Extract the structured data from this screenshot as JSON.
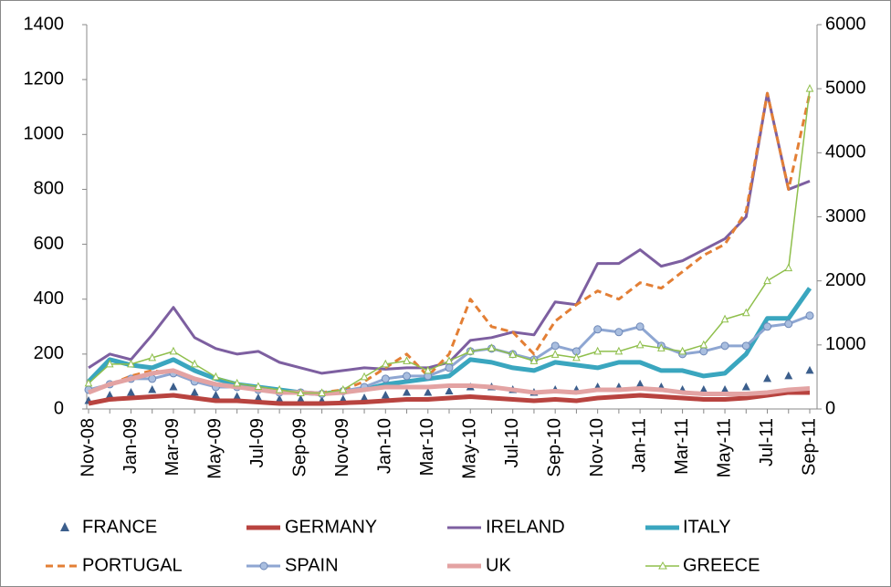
{
  "chart_data": {
    "type": "line",
    "categories": [
      "Nov-08",
      null,
      "Jan-09",
      null,
      "Mar-09",
      null,
      "May-09",
      null,
      "Jul-09",
      null,
      "Sep-09",
      null,
      "Nov-09",
      null,
      "Jan-10",
      null,
      "Mar-10",
      null,
      "May-10",
      null,
      "Jul-10",
      null,
      "Sep-10",
      null,
      "Nov-10",
      null,
      "Jan-11",
      null,
      "Mar-11",
      null,
      "May-11",
      null,
      "Jul-11",
      null,
      "Sep-11"
    ],
    "ylim": [
      0,
      1400
    ],
    "yticks": [
      0,
      200,
      400,
      600,
      800,
      1000,
      1200,
      1400
    ],
    "y2lim": [
      0,
      6000
    ],
    "y2ticks": [
      0,
      1000,
      2000,
      3000,
      4000,
      5000,
      6000
    ],
    "grid": false,
    "series": [
      {
        "name": "FRANCE",
        "color": "#3b5e8c",
        "marker": "triangle",
        "values": [
          30,
          50,
          60,
          70,
          80,
          60,
          50,
          45,
          40,
          35,
          35,
          30,
          35,
          40,
          50,
          60,
          60,
          65,
          80,
          80,
          70,
          60,
          70,
          70,
          80,
          80,
          90,
          80,
          70,
          70,
          70,
          80,
          110,
          120,
          140
        ]
      },
      {
        "name": "GERMANY",
        "color": "#b8433f",
        "width": 5,
        "values": [
          20,
          35,
          40,
          45,
          50,
          40,
          30,
          30,
          25,
          20,
          20,
          20,
          22,
          25,
          30,
          35,
          35,
          40,
          45,
          40,
          35,
          30,
          35,
          30,
          40,
          45,
          50,
          45,
          40,
          35,
          35,
          40,
          50,
          60,
          60
        ]
      },
      {
        "name": "IRELAND",
        "color": "#7d5fa0",
        "width": 3,
        "values": [
          150,
          200,
          180,
          270,
          370,
          260,
          220,
          200,
          210,
          170,
          150,
          130,
          140,
          150,
          145,
          150,
          150,
          170,
          250,
          260,
          280,
          270,
          390,
          380,
          530,
          530,
          580,
          520,
          540,
          580,
          620,
          700,
          1150,
          800,
          830
        ]
      },
      {
        "name": "ITALY",
        "color": "#3aa6bf",
        "width": 5,
        "values": [
          100,
          180,
          160,
          150,
          180,
          140,
          110,
          90,
          80,
          70,
          60,
          55,
          65,
          70,
          90,
          100,
          110,
          120,
          180,
          170,
          150,
          140,
          170,
          160,
          150,
          170,
          170,
          140,
          140,
          120,
          130,
          200,
          330,
          330,
          440
        ]
      },
      {
        "name": "PORTUGAL",
        "color": "#e37f35",
        "width": 3,
        "dashed": true,
        "values": [
          60,
          90,
          120,
          140,
          130,
          100,
          90,
          80,
          70,
          60,
          60,
          60,
          70,
          100,
          150,
          200,
          120,
          200,
          400,
          300,
          280,
          200,
          320,
          380,
          430,
          400,
          460,
          440,
          500,
          560,
          600,
          720,
          1150,
          800,
          1150
        ]
      },
      {
        "name": "SPAIN",
        "color": "#8ea6d2",
        "width": 3,
        "marker": "circle",
        "values": [
          70,
          90,
          110,
          110,
          130,
          100,
          80,
          80,
          70,
          60,
          60,
          55,
          65,
          80,
          110,
          120,
          120,
          150,
          210,
          220,
          200,
          180,
          230,
          210,
          290,
          280,
          300,
          230,
          200,
          210,
          230,
          230,
          300,
          310,
          340
        ]
      },
      {
        "name": "UK",
        "color": "#e3a3a3",
        "width": 5,
        "values": [
          60,
          90,
          110,
          130,
          140,
          110,
          90,
          80,
          70,
          60,
          60,
          55,
          60,
          70,
          80,
          80,
          80,
          85,
          85,
          80,
          70,
          60,
          65,
          60,
          70,
          70,
          75,
          70,
          60,
          55,
          55,
          55,
          60,
          70,
          75
        ]
      },
      {
        "name": "GREECE",
        "color": "#8fbf4c",
        "width": 1.5,
        "marker": "open-triangle",
        "axis": "y2",
        "values": [
          400,
          700,
          700,
          800,
          900,
          700,
          500,
          400,
          350,
          300,
          250,
          250,
          300,
          500,
          700,
          750,
          600,
          750,
          900,
          950,
          850,
          750,
          850,
          800,
          900,
          900,
          1000,
          950,
          900,
          1000,
          1400,
          1500,
          2000,
          2200,
          5000
        ]
      }
    ]
  }
}
